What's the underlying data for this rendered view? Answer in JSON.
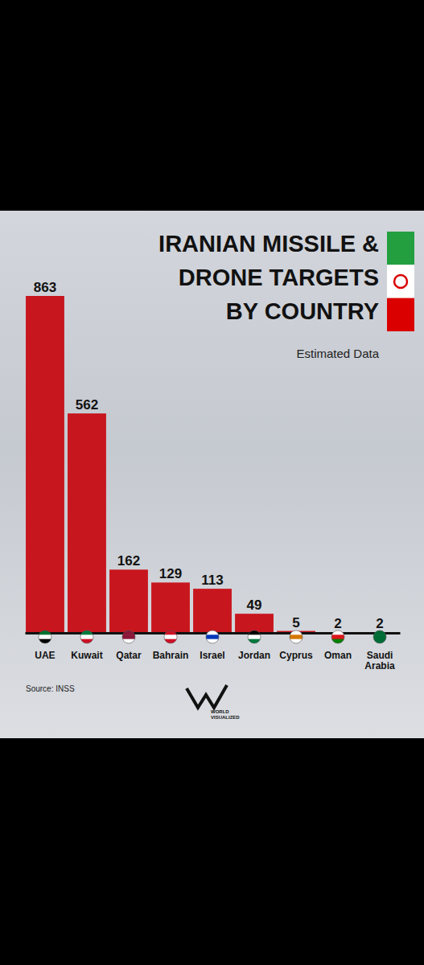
{
  "chart_data": {
    "type": "bar",
    "title": "IRANIAN MISSILE & DRONE TARGETS BY COUNTRY",
    "subtitle": "Estimated Data",
    "source": "Source: INSS",
    "brand": "WORLD VISUALIZED",
    "categories": [
      "UAE",
      "Kuwait",
      "Qatar",
      "Bahrain",
      "Israel",
      "Jordan",
      "Cyprus",
      "Oman",
      "Saudi Arabia"
    ],
    "values": [
      863,
      562,
      162,
      129,
      113,
      49,
      5,
      2,
      2
    ],
    "color": "#c8161e",
    "ylim": [
      0,
      863
    ],
    "data_labels": true,
    "tick_labels": "x",
    "grid": false
  }
}
